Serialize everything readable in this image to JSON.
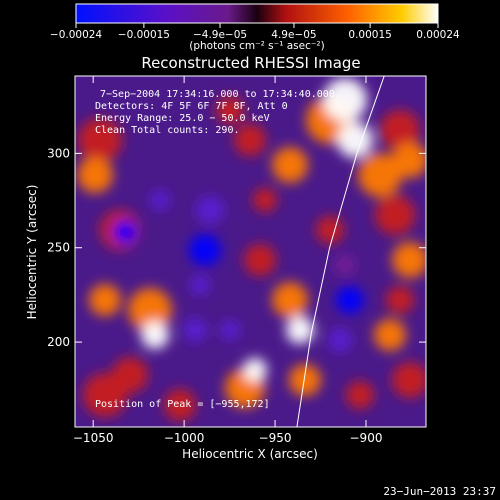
{
  "chart_data": {
    "type": "heatmap",
    "title": "Reconstructed RHESSI Image",
    "xlabel": "Heliocentric X (arcsec)",
    "ylabel": "Heliocentric Y (arcsec)",
    "xlim": [
      -1060,
      -867
    ],
    "ylim": [
      155,
      341
    ],
    "xticks": [
      -1050,
      -1000,
      -950,
      -900
    ],
    "xtick_labels": [
      "−1050",
      "−1000",
      "−950",
      "−900"
    ],
    "yticks": [
      200,
      250,
      300
    ],
    "ytick_labels": [
      "200",
      "250",
      "300"
    ],
    "colorbar": {
      "range": [
        -0.00024,
        0.00024
      ],
      "ticks": [
        -0.00024,
        -0.00015,
        -4.9e-05,
        4.9e-05,
        0.00015,
        0.00024
      ],
      "tick_labels": [
        "−0.00024",
        "−0.00015",
        "−4.9e−05",
        "4.9e−05",
        "0.00015",
        "0.00024"
      ],
      "unit_label": "(photons cm⁻² s⁻¹ asec⁻²)"
    },
    "annotations": [
      "7−Sep−2004 17:34:16.000 to 17:34:40.000",
      "Detectors: 4F 5F 6F 7F 8F, Att 0",
      "Energy Range: 25.0 − 50.0 keV",
      "Clean    Total counts: 290.",
      "Position of Peak = [−955,172]"
    ],
    "limb_points": [
      [
        -938,
        155
      ],
      [
        -930,
        205
      ],
      [
        -920,
        250
      ],
      [
        -905,
        300
      ],
      [
        -890,
        341
      ]
    ]
  },
  "footer": {
    "timestamp": "23−Jun−2013 23:37"
  },
  "colors": {
    "map": [
      "#0000ff",
      "#5a1fd4",
      "#7a1a9a",
      "#c81e1e",
      "#ff7a00",
      "#ffffff"
    ]
  }
}
